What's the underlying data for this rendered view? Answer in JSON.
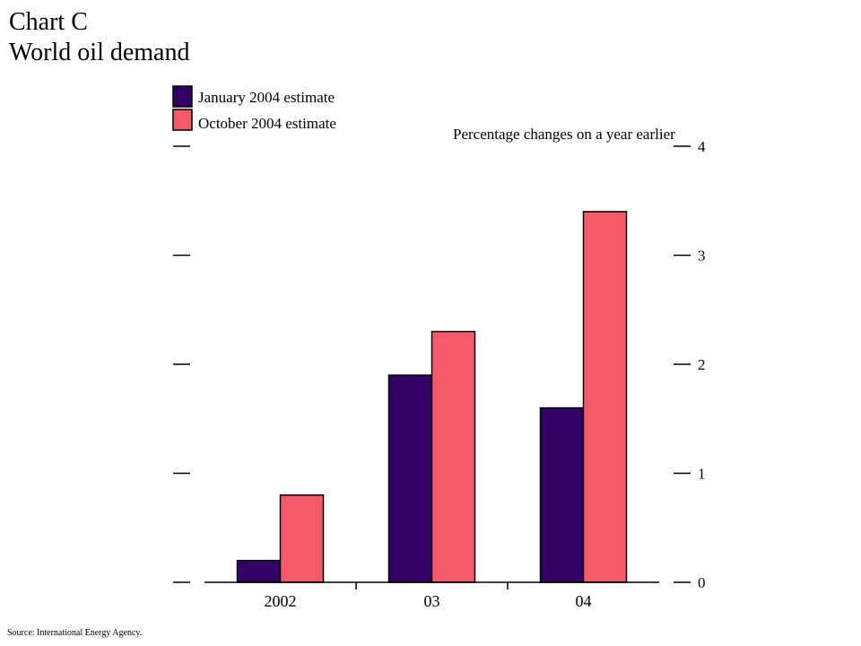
{
  "title": {
    "line1": "Chart C",
    "line2": "World oil demand"
  },
  "source": "Source:  International Energy Agency.",
  "chart_data": {
    "type": "bar",
    "title": "World oil demand",
    "units_label": "Percentage changes on a year earlier",
    "categories": [
      "2002",
      "03",
      "04"
    ],
    "series": [
      {
        "name": "January 2004 estimate",
        "color": "#330066",
        "values": [
          0.2,
          1.9,
          1.6
        ]
      },
      {
        "name": "October 2004 estimate",
        "color": "#f45a6a",
        "values": [
          0.8,
          2.3,
          3.4
        ]
      }
    ],
    "ylim": [
      0,
      4
    ],
    "yticks": [
      "0",
      "1",
      "2",
      "3",
      "4"
    ],
    "right_axis_labels": true,
    "left_axis_labels": false,
    "grid": false,
    "legend_position": "top-left"
  }
}
